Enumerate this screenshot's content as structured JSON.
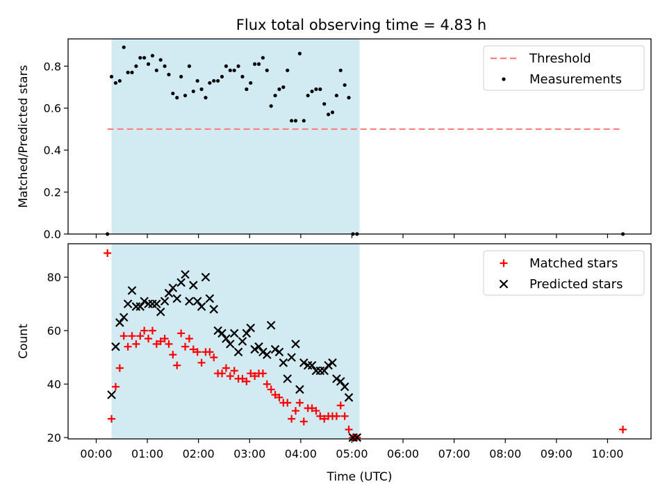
{
  "title": "Flux total observing time = 4.83 h",
  "colors": {
    "shade": "#add8e6",
    "threshold": "#ff7f7f",
    "matched": "#ff0000",
    "predicted": "#000000",
    "measurement": "#000000"
  },
  "chart_data": [
    {
      "type": "scatter",
      "panel": "top",
      "ylabel": "Matched/Predicted stars",
      "xlabel": "",
      "xlim": [
        -0.55,
        10.85
      ],
      "ylim": [
        0,
        0.93
      ],
      "yticks": [
        0.0,
        0.2,
        0.4,
        0.6,
        0.8
      ],
      "ytick_labels": [
        "0.0",
        "0.2",
        "0.4",
        "0.6",
        "0.8"
      ],
      "shaded_span": [
        0.3,
        5.15
      ],
      "legend": "top-right",
      "grid": false,
      "series": [
        {
          "name": "Threshold",
          "kind": "dashed-line",
          "x": [
            0.22,
            10.3
          ],
          "y": [
            0.5,
            0.5
          ]
        },
        {
          "name": "Measurements",
          "kind": "points",
          "x": [
            0.22,
            0.3,
            0.38,
            0.46,
            0.54,
            0.62,
            0.7,
            0.78,
            0.86,
            0.94,
            1.02,
            1.1,
            1.18,
            1.26,
            1.34,
            1.42,
            1.5,
            1.58,
            1.66,
            1.74,
            1.82,
            1.9,
            1.98,
            2.06,
            2.14,
            2.22,
            2.3,
            2.38,
            2.46,
            2.54,
            2.62,
            2.7,
            2.78,
            2.86,
            2.94,
            3.02,
            3.1,
            3.18,
            3.26,
            3.34,
            3.42,
            3.5,
            3.58,
            3.66,
            3.74,
            3.82,
            3.9,
            3.98,
            4.06,
            4.14,
            4.22,
            4.3,
            4.38,
            4.46,
            4.54,
            4.62,
            4.7,
            4.78,
            4.86,
            4.94,
            5.02,
            5.1,
            10.3
          ],
          "y": [
            0.0,
            0.75,
            0.72,
            0.73,
            0.89,
            0.77,
            0.77,
            0.8,
            0.84,
            0.84,
            0.81,
            0.85,
            0.78,
            0.83,
            0.8,
            0.76,
            0.67,
            0.65,
            0.75,
            0.66,
            0.8,
            0.68,
            0.73,
            0.69,
            0.65,
            0.72,
            0.73,
            0.73,
            0.75,
            0.8,
            0.78,
            0.78,
            0.8,
            0.75,
            0.69,
            0.72,
            0.81,
            0.81,
            0.84,
            0.78,
            0.61,
            0.66,
            0.69,
            0.7,
            0.78,
            0.54,
            0.54,
            0.86,
            0.54,
            0.66,
            0.68,
            0.69,
            0.69,
            0.62,
            0.57,
            0.58,
            0.66,
            0.78,
            0.71,
            0.65,
            0.0,
            0.0,
            0.0
          ],
          "note": ""
        }
      ]
    },
    {
      "type": "scatter",
      "panel": "bottom",
      "ylabel": "Count",
      "xlabel": "Time (UTC)",
      "xlim": [
        -0.55,
        10.85
      ],
      "ylim": [
        19.5,
        92.5
      ],
      "yticks": [
        20,
        40,
        60,
        80
      ],
      "ytick_labels": [
        "20",
        "40",
        "60",
        "80"
      ],
      "xticks": [
        0,
        1,
        2,
        3,
        4,
        5,
        6,
        7,
        8,
        9,
        10
      ],
      "xtick_labels": [
        "00:00",
        "01:00",
        "02:00",
        "03:00",
        "04:00",
        "05:00",
        "06:00",
        "07:00",
        "08:00",
        "09:00",
        "10:00"
      ],
      "shaded_span": [
        0.3,
        5.15
      ],
      "legend": "top-right",
      "grid": false,
      "series": [
        {
          "name": "Matched stars",
          "marker": "plus",
          "x": [
            0.22,
            0.3,
            0.38,
            0.46,
            0.54,
            0.62,
            0.7,
            0.78,
            0.86,
            0.94,
            1.02,
            1.1,
            1.18,
            1.26,
            1.34,
            1.42,
            1.5,
            1.58,
            1.66,
            1.74,
            1.82,
            1.9,
            1.98,
            2.06,
            2.14,
            2.22,
            2.3,
            2.38,
            2.46,
            2.54,
            2.62,
            2.7,
            2.78,
            2.86,
            2.94,
            3.02,
            3.1,
            3.18,
            3.26,
            3.34,
            3.42,
            3.5,
            3.58,
            3.66,
            3.74,
            3.82,
            3.9,
            3.98,
            4.06,
            4.14,
            4.22,
            4.3,
            4.38,
            4.46,
            4.54,
            4.62,
            4.7,
            4.78,
            4.86,
            4.94,
            5.02,
            5.1,
            10.3
          ],
          "y": [
            89,
            27,
            39,
            46,
            58,
            54,
            58,
            55,
            58,
            60,
            57,
            60,
            55,
            56,
            57,
            55,
            51,
            47,
            59,
            54,
            57,
            53,
            52,
            48,
            52,
            52,
            50,
            44,
            44,
            46,
            43,
            45,
            42,
            42,
            41,
            44,
            43,
            44,
            44,
            40,
            38,
            36,
            35,
            33,
            33,
            27,
            30,
            33,
            26,
            31,
            31,
            30,
            28,
            27,
            28,
            28,
            28,
            32,
            28,
            23,
            20,
            20,
            23
          ]
        },
        {
          "name": "Predicted stars",
          "marker": "x",
          "x": [
            0.3,
            0.38,
            0.46,
            0.54,
            0.62,
            0.7,
            0.78,
            0.86,
            0.94,
            1.02,
            1.1,
            1.18,
            1.26,
            1.34,
            1.42,
            1.5,
            1.58,
            1.66,
            1.74,
            1.82,
            1.9,
            1.98,
            2.06,
            2.14,
            2.22,
            2.3,
            2.38,
            2.46,
            2.54,
            2.62,
            2.7,
            2.78,
            2.86,
            2.94,
            3.02,
            3.1,
            3.18,
            3.26,
            3.34,
            3.42,
            3.5,
            3.58,
            3.66,
            3.74,
            3.82,
            3.9,
            3.98,
            4.06,
            4.14,
            4.22,
            4.3,
            4.38,
            4.46,
            4.54,
            4.62,
            4.7,
            4.78,
            4.86,
            4.94,
            5.02,
            5.1
          ],
          "y": [
            36,
            54,
            63,
            65,
            70,
            75,
            69,
            69,
            71,
            70,
            70,
            70,
            67,
            71,
            74,
            76,
            72,
            78,
            81,
            71,
            77,
            71,
            69,
            80,
            72,
            68,
            60,
            59,
            57,
            55,
            59,
            52,
            56,
            59,
            61,
            53,
            54,
            52,
            51,
            62,
            53,
            52,
            48,
            42,
            50,
            55,
            38,
            48,
            47,
            47,
            45,
            45,
            45,
            47,
            48,
            42,
            41,
            39,
            35,
            20,
            20
          ]
        }
      ]
    }
  ]
}
